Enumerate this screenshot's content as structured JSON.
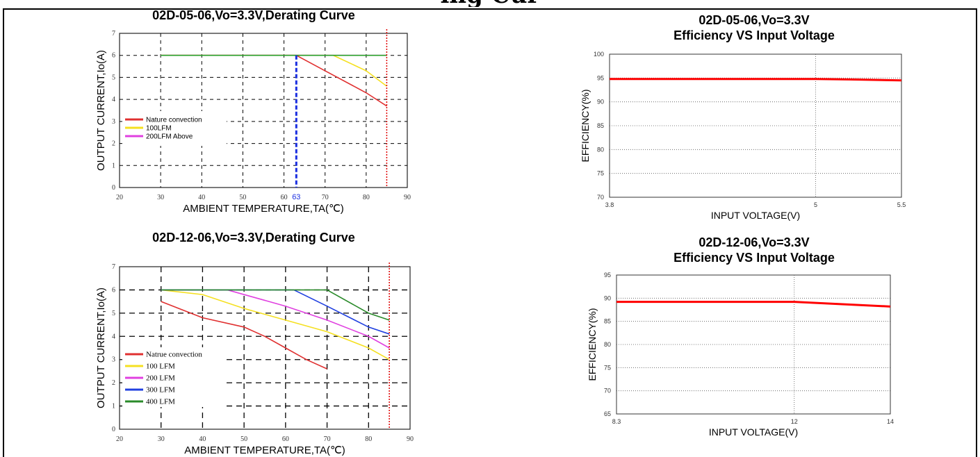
{
  "page_heading_fragment": "ing Cur",
  "chart_data": [
    {
      "type": "line",
      "title": "02D-05-06,Vo=3.3V,Derating Curve",
      "xlabel": "AMBIENT TEMPERATURE,TA(℃)",
      "ylabel": "OUTPUT CURRENT,Io(A)",
      "xlim": [
        20,
        90
      ],
      "ylim": [
        0,
        7
      ],
      "xticks": [
        20,
        30,
        40,
        50,
        60,
        70,
        80,
        90
      ],
      "yticks": [
        0,
        1,
        2,
        3,
        4,
        5,
        6,
        7
      ],
      "grid": true,
      "legend_position": "left",
      "marker_label": "63",
      "marker_x": 63,
      "limit_x": 85,
      "series": [
        {
          "name": "Nature convection",
          "color": "#e03030",
          "x": [
            30,
            63,
            70,
            80,
            85
          ],
          "y": [
            6,
            6,
            5.3,
            4.3,
            3.7
          ]
        },
        {
          "name": "100LFM",
          "color": "#f5e020",
          "x": [
            30,
            72,
            80,
            85
          ],
          "y": [
            6,
            6,
            5.3,
            4.6
          ]
        },
        {
          "name": "200LFM Above",
          "color": "#e040e0",
          "x": [
            30,
            85
          ],
          "y": [
            6,
            6
          ]
        },
        {
          "name": "",
          "color": "#2aa02a",
          "x": [
            30,
            85
          ],
          "y": [
            6,
            6
          ]
        }
      ]
    },
    {
      "type": "line",
      "title": "02D-05-06,Vo=3.3V\nEfficiency VS Input Voltage",
      "xlabel": "INPUT VOLTAGE(V)",
      "ylabel": "EFFICIENCY(%)",
      "xlim": [
        3.8,
        5.5
      ],
      "ylim": [
        70,
        100
      ],
      "xticks": [
        3.8,
        5,
        5.5
      ],
      "yticks": [
        70,
        75,
        80,
        85,
        90,
        95,
        100
      ],
      "grid": true,
      "series": [
        {
          "name": "",
          "color": "#ff0000",
          "x": [
            3.8,
            4.5,
            5,
            5.2,
            5.5
          ],
          "y": [
            94.8,
            94.8,
            94.8,
            94.7,
            94.5
          ]
        }
      ]
    },
    {
      "type": "line",
      "title": "02D-12-06,Vo=3.3V,Derating Curve",
      "xlabel": "AMBIENT TEMPERATURE,TA(℃)",
      "ylabel": "OUTPUT CURRENT,Io(A)",
      "xlim": [
        20,
        90
      ],
      "ylim": [
        0,
        7
      ],
      "xticks": [
        20,
        30,
        40,
        50,
        60,
        70,
        80,
        90
      ],
      "yticks": [
        0,
        1,
        2,
        3,
        4,
        5,
        6,
        7
      ],
      "grid": true,
      "legend_position": "left",
      "limit_x": 85,
      "series": [
        {
          "name": "Natrue convection",
          "color": "#e03030",
          "x": [
            30,
            40,
            50,
            55,
            60,
            65,
            70
          ],
          "y": [
            5.5,
            4.8,
            4.4,
            4.0,
            3.5,
            3.0,
            2.6
          ]
        },
        {
          "name": "100 LFM",
          "color": "#f5e020",
          "x": [
            30,
            40,
            50,
            60,
            70,
            80,
            85
          ],
          "y": [
            6,
            5.8,
            5.2,
            4.7,
            4.2,
            3.5,
            3.0
          ]
        },
        {
          "name": "200 LFM",
          "color": "#e040e0",
          "x": [
            30,
            46,
            60,
            70,
            80,
            85
          ],
          "y": [
            6,
            6,
            5.3,
            4.7,
            4.0,
            3.5
          ]
        },
        {
          "name": "300 LFM",
          "color": "#2040e0",
          "x": [
            30,
            62,
            70,
            80,
            85
          ],
          "y": [
            6,
            6,
            5.3,
            4.4,
            4.1
          ]
        },
        {
          "name": "400 LFM",
          "color": "#2a8a2a",
          "x": [
            30,
            70,
            80,
            85
          ],
          "y": [
            6,
            6,
            5.0,
            4.7
          ]
        }
      ]
    },
    {
      "type": "line",
      "title": "02D-12-06,Vo=3.3V\nEfficiency VS Input Voltage",
      "xlabel": "INPUT VOLTAGE(V)",
      "ylabel": "EFFICIENCY(%)",
      "xlim": [
        8.3,
        14
      ],
      "ylim": [
        65,
        95
      ],
      "xticks": [
        8.3,
        12,
        14
      ],
      "yticks": [
        65,
        70,
        75,
        80,
        85,
        90,
        95
      ],
      "grid": true,
      "series": [
        {
          "name": "",
          "color": "#ff0000",
          "x": [
            8.3,
            10,
            12,
            13,
            14
          ],
          "y": [
            89.2,
            89.2,
            89.2,
            88.7,
            88.2
          ]
        }
      ]
    }
  ]
}
